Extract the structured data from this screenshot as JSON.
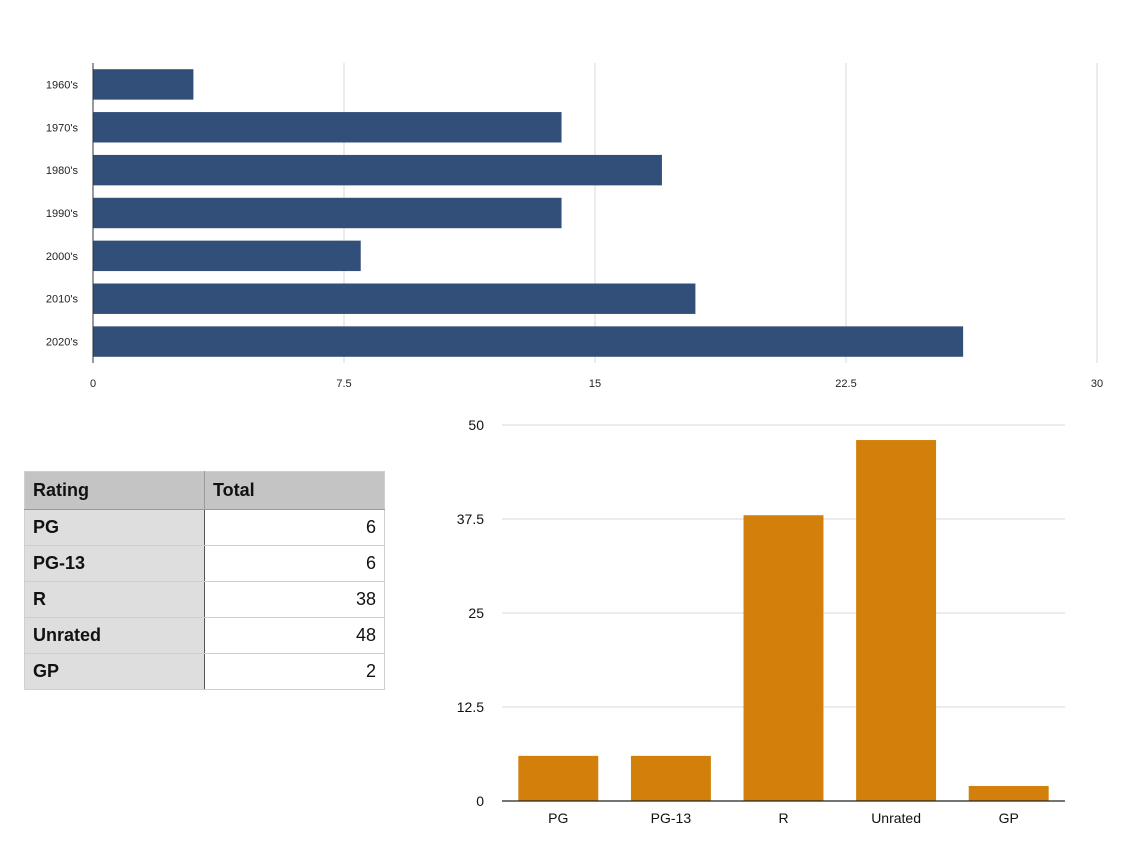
{
  "chart_data": [
    {
      "type": "bar",
      "orientation": "horizontal",
      "categories": [
        "1960's",
        "1970's",
        "1980's",
        "1990's",
        "2000's",
        "2010's",
        "2020's"
      ],
      "values": [
        3,
        14,
        17,
        14,
        8,
        18,
        26
      ],
      "xlim": [
        0,
        30
      ],
      "xticks": [
        "0",
        "7.5",
        "15",
        "22.5",
        "30"
      ],
      "xtick_values": [
        0,
        7.5,
        15,
        22.5,
        30
      ],
      "grid": "vertical",
      "color": "#324f79"
    },
    {
      "type": "bar",
      "orientation": "vertical",
      "categories": [
        "PG",
        "PG-13",
        "R",
        "Unrated",
        "GP"
      ],
      "values": [
        6,
        6,
        38,
        48,
        2
      ],
      "ylim": [
        0,
        50
      ],
      "yticks": [
        "0",
        "12.5",
        "25",
        "37.5",
        "50"
      ],
      "ytick_values": [
        0,
        12.5,
        25,
        37.5,
        50
      ],
      "grid": "horizontal",
      "color": "#d2800b"
    }
  ],
  "table": {
    "headers": [
      "Rating",
      "Total"
    ],
    "rows": [
      {
        "rating": "PG",
        "total": "6"
      },
      {
        "rating": "PG-13",
        "total": "6"
      },
      {
        "rating": "R",
        "total": "38"
      },
      {
        "rating": "Unrated",
        "total": "48"
      },
      {
        "rating": "GP",
        "total": "2"
      }
    ]
  }
}
